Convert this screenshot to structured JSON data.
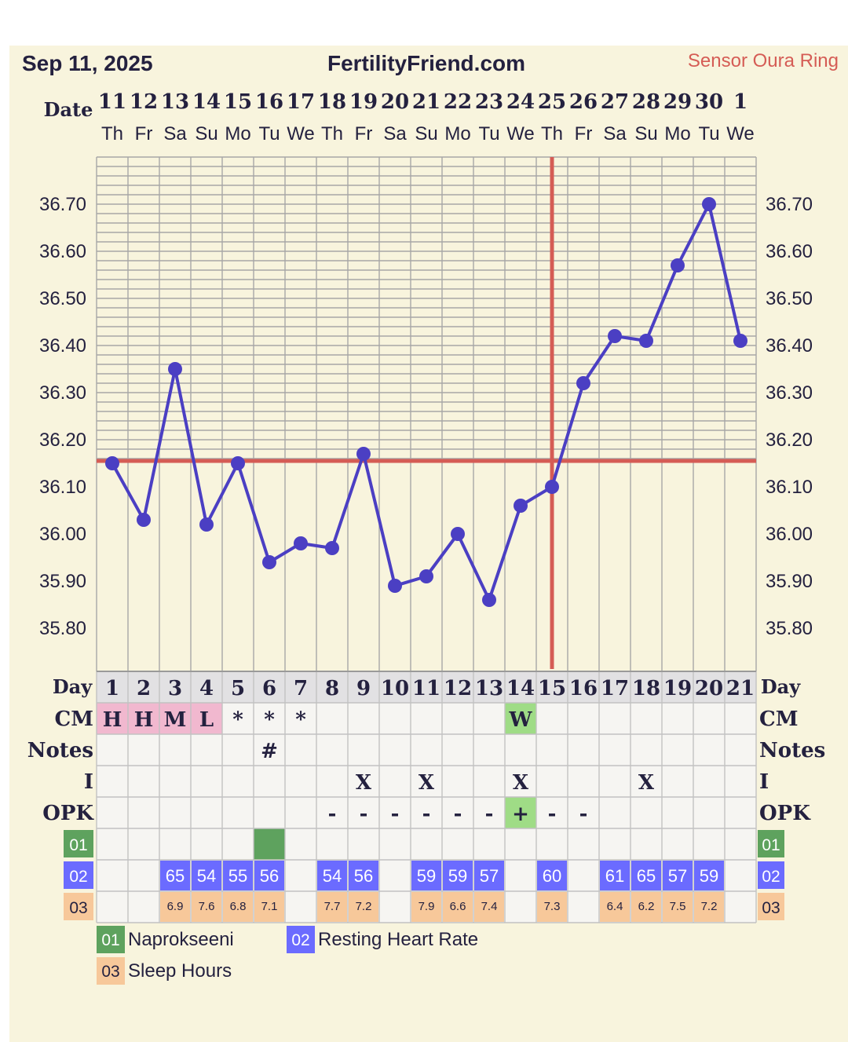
{
  "header": {
    "date": "Sep 11, 2025",
    "site": "FertilityFriend.com",
    "sensor": "Sensor Oura Ring"
  },
  "date_label": "Date",
  "day_label": "Day",
  "dates": [
    "11",
    "12",
    "13",
    "14",
    "15",
    "16",
    "17",
    "18",
    "19",
    "20",
    "21",
    "22",
    "23",
    "24",
    "25",
    "26",
    "27",
    "28",
    "29",
    "30",
    "1"
  ],
  "weekdays": [
    "Th",
    "Fr",
    "Sa",
    "Su",
    "Mo",
    "Tu",
    "We",
    "Th",
    "Fr",
    "Sa",
    "Su",
    "Mo",
    "Tu",
    "We",
    "Th",
    "Fr",
    "Sa",
    "Su",
    "Mo",
    "Tu",
    "We"
  ],
  "days": [
    "1",
    "2",
    "3",
    "4",
    "5",
    "6",
    "7",
    "8",
    "9",
    "10",
    "11",
    "12",
    "13",
    "14",
    "15",
    "16",
    "17",
    "18",
    "19",
    "20",
    "21"
  ],
  "rows": {
    "cm_label": "CM",
    "notes_label": "Notes",
    "i_label": "I",
    "opk_label": "OPK",
    "cm": [
      "H",
      "H",
      "M",
      "L",
      "*",
      "*",
      "*",
      "",
      "",
      "",
      "",
      "",
      "",
      "W",
      "",
      "",
      "",
      "",
      "",
      "",
      ""
    ],
    "notes": [
      "",
      "",
      "",
      "",
      "",
      "#",
      "",
      "",
      "",
      "",
      "",
      "",
      "",
      "",
      "",
      "",
      "",
      "",
      "",
      "",
      ""
    ],
    "intercourse": [
      "",
      "",
      "",
      "",
      "",
      "",
      "",
      "",
      "X",
      "",
      "X",
      "",
      "",
      "X",
      "",
      "",
      "",
      "X",
      "",
      "",
      ""
    ],
    "opk": [
      "",
      "",
      "",
      "",
      "",
      "",
      "",
      "-",
      "-",
      "-",
      "-",
      "-",
      "-",
      "+",
      "-",
      "-",
      "",
      "",
      "",
      "",
      ""
    ],
    "naprokseeni": [
      false,
      false,
      false,
      false,
      false,
      true,
      false,
      false,
      false,
      false,
      false,
      false,
      false,
      false,
      false,
      false,
      false,
      false,
      false,
      false,
      false
    ],
    "rhr": [
      "",
      "",
      "65",
      "54",
      "55",
      "56",
      "",
      "54",
      "56",
      "",
      "59",
      "59",
      "57",
      "",
      "60",
      "",
      "61",
      "65",
      "57",
      "59",
      ""
    ],
    "sleep": [
      "",
      "",
      "6.9",
      "7.6",
      "6.8",
      "7.1",
      "",
      "7.7",
      "7.2",
      "",
      "7.9",
      "6.6",
      "7.4",
      "",
      "7.3",
      "",
      "6.4",
      "6.2",
      "7.5",
      "7.2",
      ""
    ]
  },
  "custom_codes": {
    "c01": "01",
    "c02": "02",
    "c03": "03"
  },
  "legend": {
    "item1_code": "01",
    "item1_label": "Naprokseeni",
    "item2_code": "02",
    "item2_label": "Resting Heart Rate",
    "item3_code": "03",
    "item3_label": "Sleep Hours"
  },
  "colors": {
    "background": "#f8f4dd",
    "text": "#24213f",
    "line": "#4b3fc3",
    "coverline": "#d55c55",
    "sensor": "#d55c55",
    "cm_fertile": "#f1b8cf",
    "cm_egg": "#9fdc86",
    "opk_positive": "#9fdc86",
    "code1": "#5ea25e",
    "code2": "#6b6bff",
    "code3": "#f7c89a"
  },
  "chart_data": {
    "type": "line",
    "title": "FertilityFriend.com",
    "x": [
      "1",
      "2",
      "3",
      "4",
      "5",
      "6",
      "7",
      "8",
      "9",
      "10",
      "11",
      "12",
      "13",
      "14",
      "15",
      "16",
      "17",
      "18",
      "19",
      "20",
      "21"
    ],
    "series": [
      {
        "values": [
          36.15,
          36.03,
          36.35,
          36.02,
          36.15,
          35.94,
          35.98,
          35.97,
          36.17,
          35.89,
          35.91,
          36.0,
          35.86,
          36.06,
          36.1,
          36.32,
          36.42,
          36.41,
          36.57,
          36.7,
          36.41
        ]
      }
    ],
    "yticks": [
      "36.70",
      "36.60",
      "36.50",
      "36.40",
      "36.30",
      "36.20",
      "36.10",
      "36.00",
      "35.90",
      "35.80"
    ],
    "ylim": [
      35.7,
      36.8
    ],
    "coverline": 36.155,
    "ovulation_day": "15",
    "grid": true
  }
}
